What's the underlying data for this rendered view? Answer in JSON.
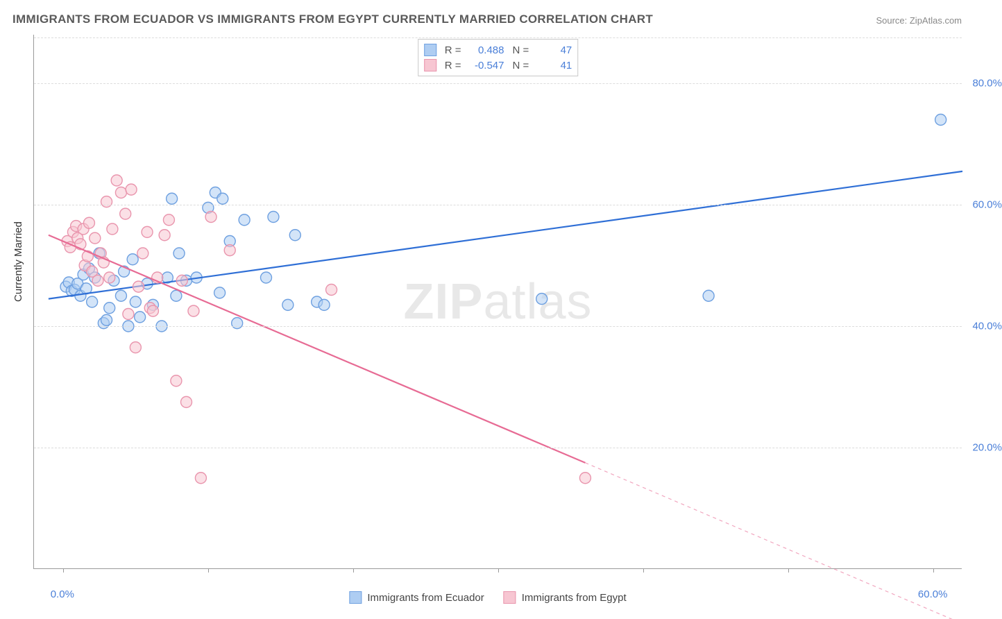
{
  "title": "IMMIGRANTS FROM ECUADOR VS IMMIGRANTS FROM EGYPT CURRENTLY MARRIED CORRELATION CHART",
  "source": "Source: ZipAtlas.com",
  "watermark_a": "ZIP",
  "watermark_b": "atlas",
  "y_axis_title": "Currently Married",
  "chart": {
    "type": "scatter-with-trend",
    "plot_background": "#ffffff",
    "grid_color": "#dcdcdc",
    "axis_color": "#999999",
    "tick_label_color": "#4a7fd8",
    "tick_fontsize": 15,
    "xlim": [
      -2,
      62
    ],
    "ylim": [
      0,
      88
    ],
    "xticks": [
      0,
      10,
      20,
      30,
      40,
      50,
      60
    ],
    "xtick_labels": [
      "0.0%",
      "",
      "",
      "",
      "",
      "",
      "60.0%"
    ],
    "yticks": [
      20,
      40,
      60,
      80
    ],
    "ytick_labels": [
      "20.0%",
      "40.0%",
      "60.0%",
      "80.0%"
    ],
    "marker_radius": 8,
    "marker_opacity": 0.55,
    "marker_stroke_width": 1.4,
    "trend_width": 2.2,
    "series": [
      {
        "name": "Immigrants from Ecuador",
        "fill": "#aecdf2",
        "stroke": "#6ea0e0",
        "trend_color": "#2f6fd6",
        "R_label": "R =",
        "R": "0.488",
        "N_label": "N =",
        "N": "47",
        "trend": {
          "x1": -1,
          "y1": 44.5,
          "x2": 62,
          "y2": 65.5
        },
        "points": [
          [
            0.2,
            46.5
          ],
          [
            0.4,
            47.2
          ],
          [
            0.6,
            45.8
          ],
          [
            0.8,
            46.0
          ],
          [
            1.0,
            47.0
          ],
          [
            1.2,
            45.0
          ],
          [
            1.4,
            48.5
          ],
          [
            1.6,
            46.2
          ],
          [
            1.8,
            49.5
          ],
          [
            2.0,
            44.0
          ],
          [
            2.2,
            48.0
          ],
          [
            2.5,
            52.0
          ],
          [
            2.8,
            40.5
          ],
          [
            3.0,
            41.0
          ],
          [
            3.2,
            43.0
          ],
          [
            3.5,
            47.5
          ],
          [
            4.0,
            45.0
          ],
          [
            4.2,
            49.0
          ],
          [
            4.5,
            40.0
          ],
          [
            4.8,
            51.0
          ],
          [
            5.0,
            44.0
          ],
          [
            5.3,
            41.5
          ],
          [
            5.8,
            47.0
          ],
          [
            6.2,
            43.5
          ],
          [
            6.8,
            40.0
          ],
          [
            7.2,
            48.0
          ],
          [
            7.5,
            61.0
          ],
          [
            7.8,
            45.0
          ],
          [
            8.0,
            52.0
          ],
          [
            8.5,
            47.5
          ],
          [
            9.2,
            48.0
          ],
          [
            10.0,
            59.5
          ],
          [
            10.5,
            62.0
          ],
          [
            10.8,
            45.5
          ],
          [
            11.0,
            61.0
          ],
          [
            11.5,
            54.0
          ],
          [
            12.0,
            40.5
          ],
          [
            12.5,
            57.5
          ],
          [
            14.0,
            48.0
          ],
          [
            14.5,
            58.0
          ],
          [
            15.5,
            43.5
          ],
          [
            16.0,
            55.0
          ],
          [
            17.5,
            44.0
          ],
          [
            18.0,
            43.5
          ],
          [
            33.0,
            44.5
          ],
          [
            44.5,
            45.0
          ],
          [
            60.5,
            74.0
          ]
        ]
      },
      {
        "name": "Immigrants from Egypt",
        "fill": "#f7c6d2",
        "stroke": "#e995ad",
        "trend_color": "#e76b94",
        "R_label": "R =",
        "R": "-0.547",
        "N_label": "N =",
        "N": "41",
        "trend": {
          "x1": -1,
          "y1": 55.0,
          "x2": 36,
          "y2": 17.5
        },
        "trend_extend": {
          "x1": 36,
          "y1": 17.5,
          "x2": 62,
          "y2": -9
        },
        "points": [
          [
            0.3,
            54.0
          ],
          [
            0.5,
            53.0
          ],
          [
            0.7,
            55.5
          ],
          [
            0.9,
            56.5
          ],
          [
            1.0,
            54.5
          ],
          [
            1.2,
            53.5
          ],
          [
            1.4,
            56.0
          ],
          [
            1.5,
            50.0
          ],
          [
            1.7,
            51.5
          ],
          [
            1.8,
            57.0
          ],
          [
            2.0,
            49.0
          ],
          [
            2.2,
            54.5
          ],
          [
            2.4,
            47.5
          ],
          [
            2.6,
            52.0
          ],
          [
            2.8,
            50.5
          ],
          [
            3.0,
            60.5
          ],
          [
            3.2,
            48.0
          ],
          [
            3.4,
            56.0
          ],
          [
            3.7,
            64.0
          ],
          [
            4.0,
            62.0
          ],
          [
            4.3,
            58.5
          ],
          [
            4.5,
            42.0
          ],
          [
            4.7,
            62.5
          ],
          [
            5.0,
            36.5
          ],
          [
            5.2,
            46.5
          ],
          [
            5.5,
            52.0
          ],
          [
            5.8,
            55.5
          ],
          [
            6.0,
            43.0
          ],
          [
            6.2,
            42.5
          ],
          [
            6.5,
            48.0
          ],
          [
            7.0,
            55.0
          ],
          [
            7.3,
            57.5
          ],
          [
            7.8,
            31.0
          ],
          [
            8.2,
            47.5
          ],
          [
            8.5,
            27.5
          ],
          [
            9.0,
            42.5
          ],
          [
            9.5,
            15.0
          ],
          [
            10.2,
            58.0
          ],
          [
            11.5,
            52.5
          ],
          [
            18.5,
            46.0
          ],
          [
            36.0,
            15.0
          ]
        ]
      }
    ]
  },
  "legend_bottom": [
    {
      "label": "Immigrants from Ecuador",
      "fill": "#aecdf2",
      "stroke": "#6ea0e0"
    },
    {
      "label": "Immigrants from Egypt",
      "fill": "#f7c6d2",
      "stroke": "#e995ad"
    }
  ]
}
